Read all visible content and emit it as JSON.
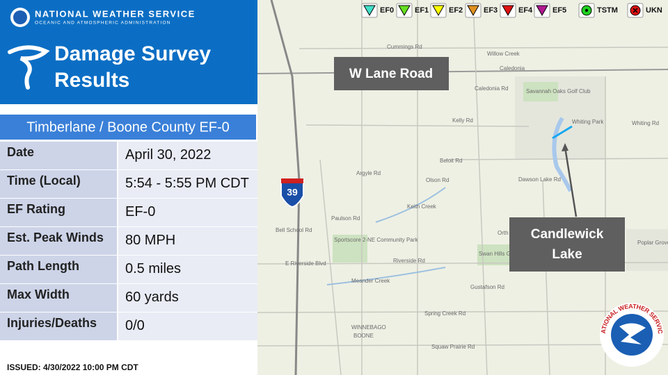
{
  "header": {
    "agency": "NATIONAL WEATHER SERVICE",
    "subagency": "OCEANIC AND ATMOSPHERIC ADMINISTRATION",
    "title_line1": "Damage Survey",
    "title_line2": "Results"
  },
  "event": "Timberlane / Boone County EF-0",
  "table": {
    "rows": [
      [
        "Date",
        "April 30, 2022"
      ],
      [
        "Time (Local)",
        "5:54 - 5:55 PM CDT"
      ],
      [
        "EF Rating",
        "EF-0"
      ],
      [
        "Est. Peak Winds",
        "80 MPH"
      ],
      [
        "Path Length",
        "0.5 miles"
      ],
      [
        "Max Width",
        "60 yards"
      ],
      [
        "Injuries/Deaths",
        "0/0"
      ]
    ]
  },
  "issued": "ISSUED:  4/30/2022 10:00 PM CDT",
  "legend": [
    {
      "label": "EF0",
      "color": "#40e0c8",
      "shape": "triangle"
    },
    {
      "label": "EF1",
      "color": "#66e020",
      "shape": "triangle"
    },
    {
      "label": "EF2",
      "color": "#ffff00",
      "shape": "triangle"
    },
    {
      "label": "EF3",
      "color": "#e09020",
      "shape": "triangle"
    },
    {
      "label": "EF4",
      "color": "#e01010",
      "shape": "triangle"
    },
    {
      "label": "EF5",
      "color": "#b01890",
      "shape": "triangle"
    },
    {
      "label": "TSTM",
      "color": "#20d020",
      "shape": "dot"
    },
    {
      "label": "UKN",
      "color": "#e01010",
      "shape": "x"
    }
  ],
  "callouts": {
    "road": "W Lane Road",
    "lake_line1": "Candlewick",
    "lake_line2": "Lake"
  },
  "shield": "39",
  "logo_text": "NATIONAL WEATHER SERVICE",
  "map": {
    "labels": [
      "Cummings Rd",
      "Willow Creek",
      "Caledonia",
      "Savannah Oaks Golf Club",
      "Kelly Rd",
      "Beloit Rd",
      "Whiting Rd",
      "Whiting Park",
      "Dawson Lake Rd",
      "Keith Creek",
      "Sportscore 2-NE Community Park",
      "E Riverside Blvd",
      "Riverside Rd",
      "Meander Creek",
      "Swan Hills Golf Course",
      "Orth Rd",
      "Gustafson Rd",
      "Spring Creek Rd",
      "Squaw Prairie Rd",
      "WINNEBAGO",
      "BOONE",
      "Poplar Grove Airport",
      "Bell School Rd",
      "Paulson Rd",
      "Argyle Rd",
      "Olson Rd",
      "Caledonia Rd"
    ]
  }
}
